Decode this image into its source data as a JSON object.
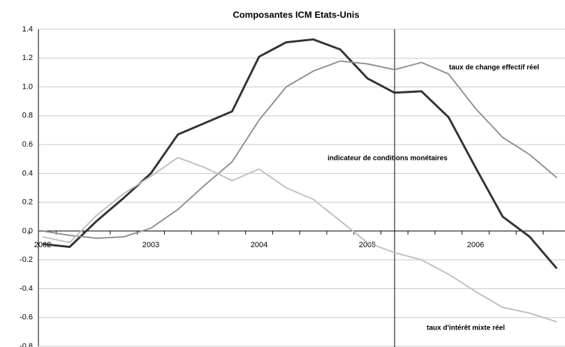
{
  "chart_data": {
    "type": "line",
    "title": "Composantes ICM Etats-Unis",
    "categories": [
      "2002",
      null,
      null,
      null,
      "2003",
      null,
      null,
      null,
      "2004",
      null,
      null,
      null,
      "2005",
      null,
      null,
      null,
      "2006",
      null,
      null,
      null
    ],
    "series": [
      {
        "name": "indicateur de conditions monétaires",
        "color": "#333333",
        "values": [
          -0.09,
          -0.11,
          0.07,
          0.23,
          0.4,
          0.67,
          0.75,
          0.83,
          1.21,
          1.31,
          1.33,
          1.26,
          1.06,
          0.96,
          0.97,
          0.79,
          0.44,
          0.1,
          -0.04,
          -0.26
        ]
      },
      {
        "name": "taux de change effectif réel",
        "color": "#909090",
        "values": [
          0.0,
          -0.03,
          -0.05,
          -0.04,
          0.02,
          0.15,
          0.32,
          0.48,
          0.77,
          1.0,
          1.11,
          1.18,
          1.16,
          1.12,
          1.17,
          1.09,
          0.85,
          0.65,
          0.53,
          0.37
        ]
      },
      {
        "name": "taux d'intérêt mixte réel",
        "color": "#c0c0c0",
        "values": [
          -0.04,
          -0.08,
          0.11,
          0.26,
          0.38,
          0.51,
          0.44,
          0.35,
          0.43,
          0.3,
          0.22,
          0.07,
          -0.08,
          -0.15,
          -0.2,
          -0.3,
          -0.42,
          -0.53,
          -0.57,
          -0.63
        ]
      }
    ],
    "ylim": [
      -0.8,
      1.4
    ],
    "yticks": [
      -0.8,
      -0.6,
      -0.4,
      -0.2,
      {
        "value": 0,
        "label": "0.0"
      },
      0.2,
      0.4,
      0.6,
      0.8,
      {
        "value": 1,
        "label": "1.0"
      },
      1.2,
      1.4
    ],
    "grid": true
  }
}
